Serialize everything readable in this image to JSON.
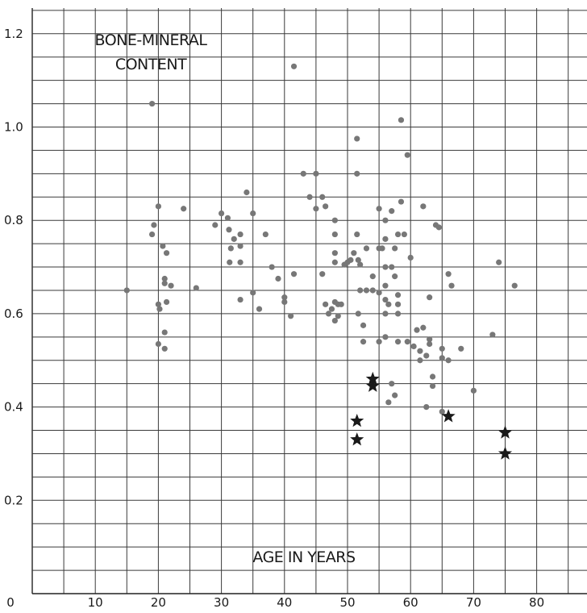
{
  "chart_data": {
    "type": "scatter",
    "title": "",
    "xlabel": "AGE IN YEARS",
    "ylabel_lines": [
      "BONE-MINERAL",
      "CONTENT"
    ],
    "xlim": [
      0,
      88
    ],
    "ylim": [
      0,
      1.25
    ],
    "x_ticks": [
      0,
      10,
      20,
      30,
      40,
      50,
      60,
      70,
      80
    ],
    "y_ticks": [
      0.2,
      0.4,
      0.6,
      0.8,
      1.0,
      1.2
    ],
    "y_tick_labels": [
      "0.2",
      "0.4",
      "0.6",
      "0.8",
      "1.0",
      "1.2"
    ],
    "grid": true,
    "legend": "none",
    "series": [
      {
        "marker": "circle",
        "color": "#777777",
        "points": [
          [
            15,
            0.65
          ],
          [
            19,
            1.05
          ],
          [
            19,
            0.77
          ],
          [
            19.3,
            0.79
          ],
          [
            20,
            0.83
          ],
          [
            20,
            0.62
          ],
          [
            20.2,
            0.61
          ],
          [
            20,
            0.535
          ],
          [
            20.7,
            0.745
          ],
          [
            21,
            0.665
          ],
          [
            21,
            0.675
          ],
          [
            21.3,
            0.73
          ],
          [
            21.3,
            0.625
          ],
          [
            21,
            0.56
          ],
          [
            21,
            0.525
          ],
          [
            22,
            0.66
          ],
          [
            24,
            0.825
          ],
          [
            26,
            0.655
          ],
          [
            29,
            0.79
          ],
          [
            30,
            0.815
          ],
          [
            31,
            0.805
          ],
          [
            31.2,
            0.78
          ],
          [
            31.5,
            0.74
          ],
          [
            31.3,
            0.71
          ],
          [
            32,
            0.76
          ],
          [
            33,
            0.77
          ],
          [
            33,
            0.745
          ],
          [
            33,
            0.71
          ],
          [
            33,
            0.63
          ],
          [
            34,
            0.86
          ],
          [
            35,
            0.815
          ],
          [
            35,
            0.645
          ],
          [
            36,
            0.61
          ],
          [
            37,
            0.77
          ],
          [
            38,
            0.7
          ],
          [
            39,
            0.675
          ],
          [
            40,
            0.635
          ],
          [
            40,
            0.625
          ],
          [
            41,
            0.595
          ],
          [
            41.5,
            0.685
          ],
          [
            41.5,
            1.13
          ],
          [
            43,
            0.9
          ],
          [
            44,
            0.85
          ],
          [
            45,
            0.9
          ],
          [
            45,
            0.825
          ],
          [
            46,
            0.85
          ],
          [
            46,
            0.685
          ],
          [
            46.5,
            0.83
          ],
          [
            46.5,
            0.62
          ],
          [
            47,
            0.6
          ],
          [
            47.5,
            0.61
          ],
          [
            48,
            0.8
          ],
          [
            48,
            0.77
          ],
          [
            48,
            0.73
          ],
          [
            48,
            0.71
          ],
          [
            48,
            0.625
          ],
          [
            48.5,
            0.62
          ],
          [
            48,
            0.585
          ],
          [
            48.5,
            0.595
          ],
          [
            49,
            0.62
          ],
          [
            49.5,
            0.705
          ],
          [
            50,
            0.71
          ],
          [
            50.5,
            0.715
          ],
          [
            51,
            0.73
          ],
          [
            51.5,
            0.975
          ],
          [
            51.5,
            0.9
          ],
          [
            51.5,
            0.77
          ],
          [
            51.7,
            0.715
          ],
          [
            52,
            0.705
          ],
          [
            52,
            0.65
          ],
          [
            51.7,
            0.6
          ],
          [
            52.5,
            0.54
          ],
          [
            52.5,
            0.575
          ],
          [
            53,
            0.74
          ],
          [
            53,
            0.65
          ],
          [
            54,
            0.68
          ],
          [
            54,
            0.65
          ],
          [
            55,
            0.825
          ],
          [
            55,
            0.74
          ],
          [
            55,
            0.645
          ],
          [
            55,
            0.54
          ],
          [
            55.5,
            0.74
          ],
          [
            56,
            0.8
          ],
          [
            56,
            0.76
          ],
          [
            56,
            0.7
          ],
          [
            56,
            0.66
          ],
          [
            56,
            0.63
          ],
          [
            56,
            0.6
          ],
          [
            56,
            0.55
          ],
          [
            57,
            0.82
          ],
          [
            57,
            0.7
          ],
          [
            56.5,
            0.62
          ],
          [
            56.5,
            0.41
          ],
          [
            57,
            0.45
          ],
          [
            57.5,
            0.68
          ],
          [
            57.5,
            0.74
          ],
          [
            58,
            0.77
          ],
          [
            58,
            0.64
          ],
          [
            58,
            0.62
          ],
          [
            58,
            0.6
          ],
          [
            58,
            0.54
          ],
          [
            57.5,
            0.425
          ],
          [
            58.5,
            0.84
          ],
          [
            58.5,
            1.015
          ],
          [
            59,
            0.77
          ],
          [
            59.5,
            0.94
          ],
          [
            59.5,
            0.54
          ],
          [
            60,
            0.72
          ],
          [
            60.5,
            0.53
          ],
          [
            61,
            0.565
          ],
          [
            61.5,
            0.52
          ],
          [
            61.5,
            0.5
          ],
          [
            62,
            0.83
          ],
          [
            62,
            0.57
          ],
          [
            62.5,
            0.51
          ],
          [
            62.5,
            0.4
          ],
          [
            63,
            0.545
          ],
          [
            63,
            0.535
          ],
          [
            63,
            0.635
          ],
          [
            63.5,
            0.465
          ],
          [
            63.5,
            0.445
          ],
          [
            64,
            0.79
          ],
          [
            64.5,
            0.785
          ],
          [
            65,
            0.525
          ],
          [
            65,
            0.39
          ],
          [
            65,
            0.505
          ],
          [
            66,
            0.685
          ],
          [
            66,
            0.5
          ],
          [
            66.5,
            0.66
          ],
          [
            68,
            0.525
          ],
          [
            70,
            0.435
          ],
          [
            73,
            0.555
          ],
          [
            74,
            0.71
          ],
          [
            76.5,
            0.66
          ]
        ]
      },
      {
        "marker": "star",
        "color": "#1a1a1a",
        "points": [
          [
            51.5,
            0.37
          ],
          [
            51.5,
            0.33
          ],
          [
            54,
            0.46
          ],
          [
            54,
            0.445
          ],
          [
            66,
            0.38
          ],
          [
            75,
            0.345
          ],
          [
            75,
            0.3
          ]
        ]
      }
    ]
  }
}
